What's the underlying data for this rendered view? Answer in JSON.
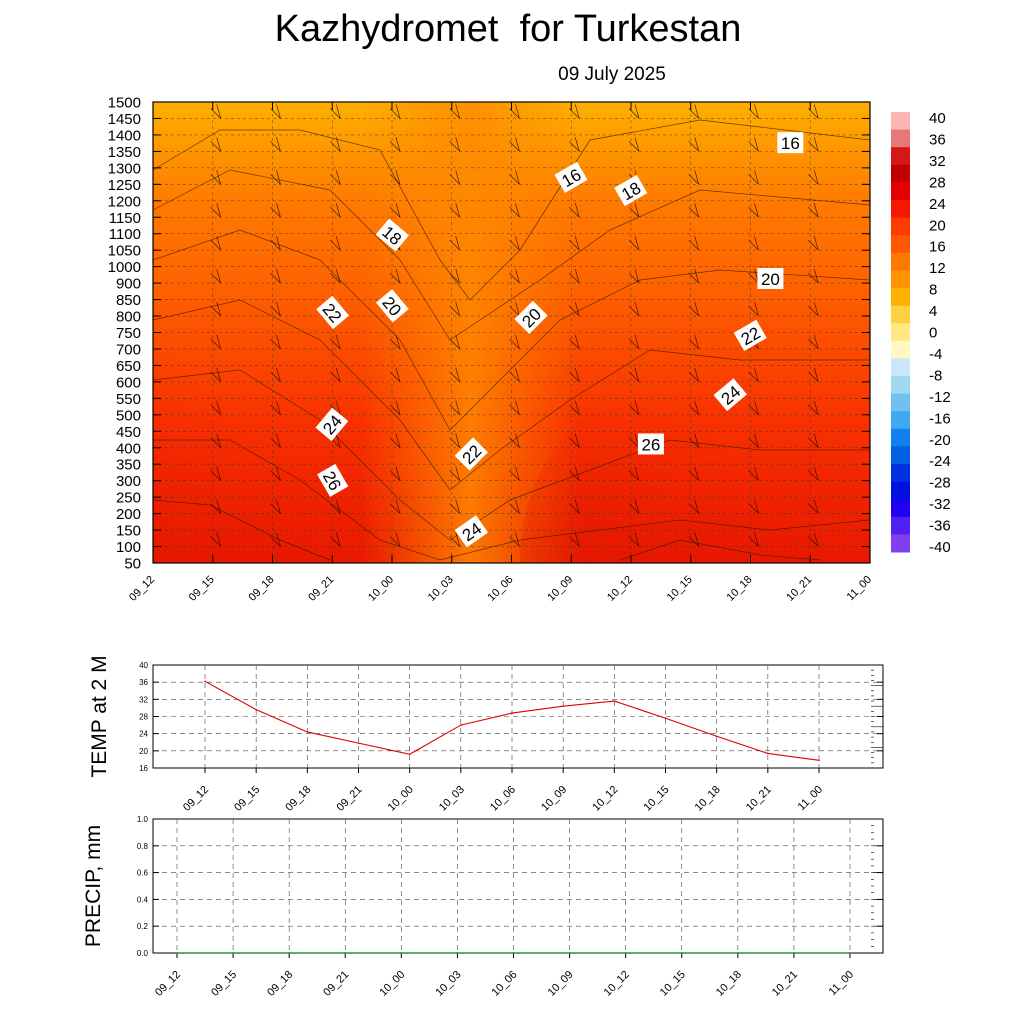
{
  "title": "Kazhydromet  for Turkestan",
  "date": "09 July 2025",
  "time_labels": [
    "09_12",
    "09_15",
    "09_18",
    "09_21",
    "10_00",
    "10_03",
    "10_06",
    "10_09",
    "10_12",
    "10_15",
    "10_18",
    "10_21",
    "11_00"
  ],
  "chart_data": [
    {
      "type": "heatmap",
      "title": "",
      "xlabel": "",
      "ylabel": "",
      "categories": [
        "09_12",
        "09_15",
        "09_18",
        "09_21",
        "10_00",
        "10_03",
        "10_06",
        "10_09",
        "10_12",
        "10_15",
        "10_18",
        "10_21",
        "11_00"
      ],
      "y_ticks": [
        50,
        100,
        150,
        200,
        250,
        300,
        350,
        400,
        450,
        500,
        550,
        600,
        650,
        700,
        750,
        800,
        850,
        900,
        1000,
        1050,
        1100,
        1150,
        1200,
        1250,
        1300,
        1350,
        1400,
        1450,
        1500
      ],
      "colorbar_labels": [
        "40",
        "36",
        "32",
        "28",
        "24",
        "20",
        "16",
        "12",
        "8",
        "4",
        "0",
        "-4",
        "-8",
        "-12",
        "-16",
        "-20",
        "-24",
        "-28",
        "-32",
        "-36",
        "-40"
      ],
      "contour_labels": [
        {
          "text": "16",
          "time": "10_09",
          "height": 1270,
          "angle": -30
        },
        {
          "text": "16",
          "time": "10_20",
          "height": 1375,
          "angle": 0
        },
        {
          "text": "18",
          "time": "10_12",
          "height": 1230,
          "angle": -30
        },
        {
          "text": "18",
          "time": "10_00",
          "height": 1095,
          "angle": 40
        },
        {
          "text": "20",
          "time": "10_00",
          "height": 830,
          "angle": 50
        },
        {
          "text": "20",
          "time": "10_07",
          "height": 795,
          "angle": -45
        },
        {
          "text": "20",
          "time": "10_19",
          "height": 925,
          "angle": 0
        },
        {
          "text": "22",
          "time": "09_21",
          "height": 810,
          "angle": 50
        },
        {
          "text": "22",
          "time": "10_04",
          "height": 380,
          "angle": -45
        },
        {
          "text": "22",
          "time": "10_18",
          "height": 740,
          "angle": -30
        },
        {
          "text": "24",
          "time": "09_21",
          "height": 470,
          "angle": -50
        },
        {
          "text": "24",
          "time": "10_04",
          "height": 145,
          "angle": -35
        },
        {
          "text": "24",
          "time": "10_17",
          "height": 560,
          "angle": -40
        },
        {
          "text": "26",
          "time": "09_21",
          "height": 300,
          "angle": 60
        },
        {
          "text": "26",
          "time": "10_13",
          "height": 410,
          "angle": 0
        }
      ],
      "colors": {
        "cool": "#ffb000",
        "mid": "#ff6a00",
        "warm": "#ee1a00",
        "hot": "#b00000"
      }
    },
    {
      "type": "line",
      "title": "",
      "xlabel": "",
      "ylabel": "TEMP at 2 M",
      "categories": [
        "09_12",
        "09_15",
        "09_18",
        "09_21",
        "10_00",
        "10_03",
        "10_06",
        "10_09",
        "10_12",
        "10_15",
        "10_18",
        "10_21",
        "11_00"
      ],
      "series": [
        {
          "values": [
            36.2,
            29.6,
            24.4,
            21.8,
            19.2,
            26.0,
            28.8,
            30.4,
            31.6,
            27.6,
            23.4,
            19.4,
            17.8
          ]
        }
      ],
      "y_ticks": [
        16,
        20,
        24,
        28,
        32,
        36,
        40
      ],
      "ylim": [
        16,
        40
      ],
      "grid": true,
      "colors": {
        "line": "#e00000"
      }
    },
    {
      "type": "line",
      "title": "",
      "xlabel": "",
      "ylabel": "PRECIP, mm",
      "categories": [
        "09_12",
        "09_15",
        "09_18",
        "09_21",
        "10_00",
        "10_03",
        "10_06",
        "10_09",
        "10_12",
        "10_15",
        "10_18",
        "10_21",
        "11_00"
      ],
      "series": [
        {
          "values": [
            0,
            0,
            0,
            0,
            0,
            0,
            0,
            0,
            0,
            0,
            0,
            0,
            0
          ]
        }
      ],
      "y_ticks": [
        "0.0",
        "0.2",
        "0.4",
        "0.6",
        "0.8",
        "1.0"
      ],
      "ylim": [
        0,
        1
      ],
      "grid": true,
      "colors": {
        "line": "#008000"
      }
    }
  ]
}
